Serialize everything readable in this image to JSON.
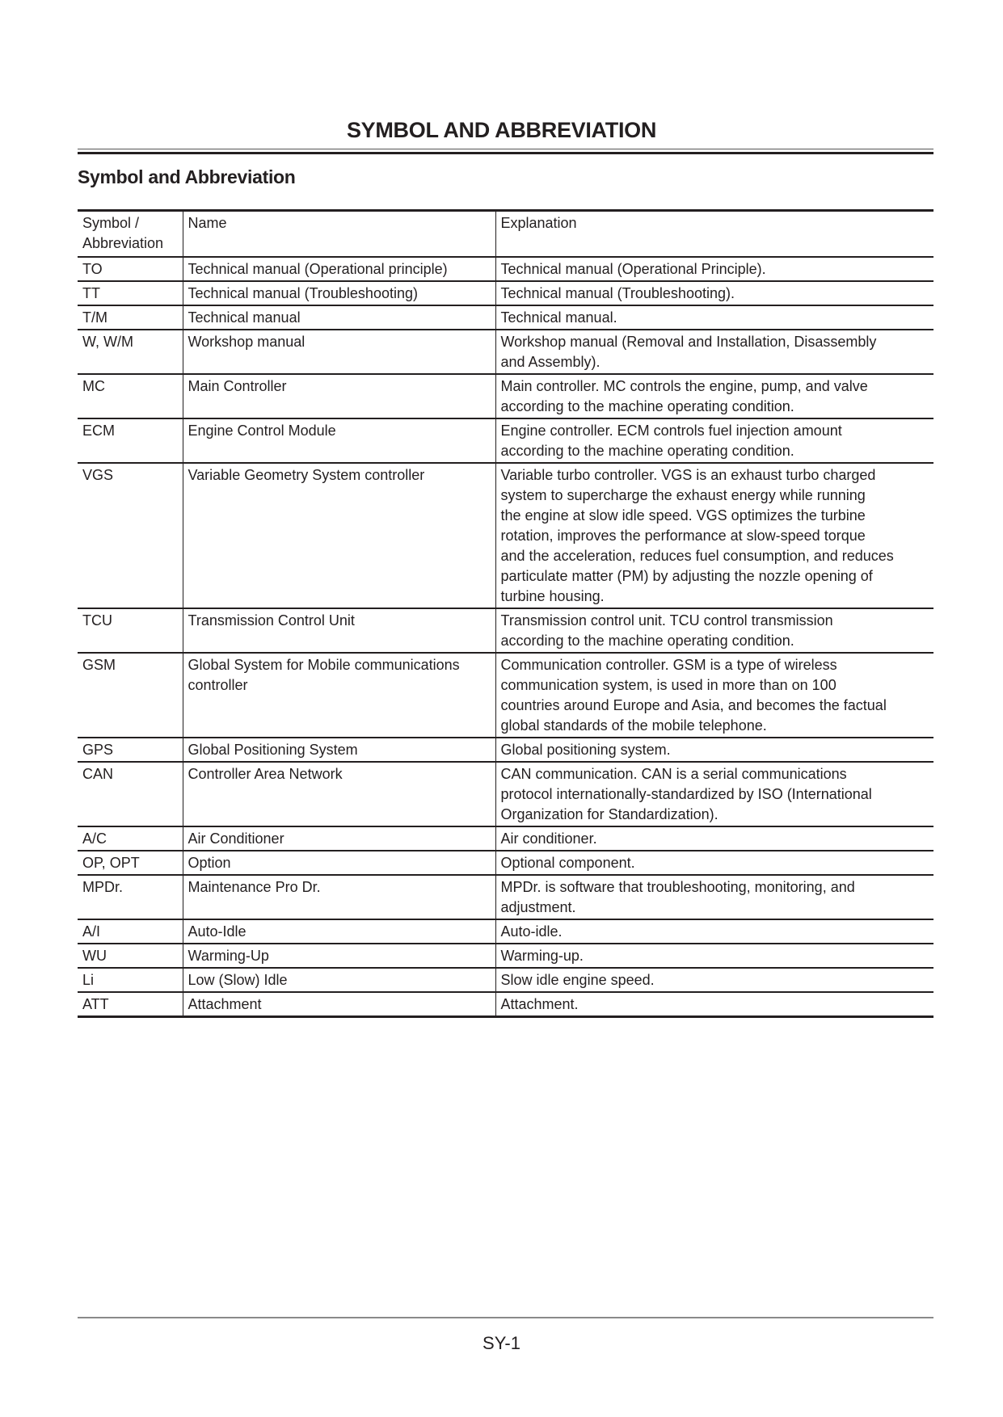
{
  "page_title": "SYMBOL AND ABBREVIATION",
  "section_title": "Symbol and Abbreviation",
  "table": {
    "headers": [
      "Symbol /\nAbbreviation",
      "Name",
      "Explanation"
    ],
    "rows": [
      [
        "TO",
        "Technical manual (Operational principle)",
        "Technical manual (Operational Principle)."
      ],
      [
        "TT",
        "Technical manual (Troubleshooting)",
        "Technical manual (Troubleshooting)."
      ],
      [
        "T/M",
        "Technical manual",
        "Technical manual."
      ],
      [
        "W, W/M",
        "Workshop manual",
        "Workshop manual (Removal and Installation, Disassembly\nand Assembly)."
      ],
      [
        "MC",
        "Main Controller",
        "Main controller. MC controls the engine, pump, and valve\naccording to the machine operating condition."
      ],
      [
        "ECM",
        "Engine Control Module",
        "Engine controller. ECM controls fuel injection amount\naccording to the machine operating condition."
      ],
      [
        "VGS",
        "Variable Geometry System controller",
        "Variable turbo controller. VGS is an exhaust turbo charged\nsystem to supercharge the exhaust energy while running\nthe engine at slow idle speed. VGS optimizes the turbine\nrotation, improves the performance at slow-speed torque\nand the acceleration, reduces fuel consumption, and reduces\nparticulate matter (PM) by adjusting the nozzle opening of\nturbine housing."
      ],
      [
        "TCU",
        "Transmission Control Unit",
        "Transmission control unit. TCU control transmission\naccording to the machine operating condition."
      ],
      [
        "GSM",
        "Global System for Mobile communications\ncontroller",
        "Communication controller. GSM is a type of wireless\ncommunication system, is used in more than on 100\ncountries around Europe and Asia, and becomes the factual\nglobal standards of the mobile telephone."
      ],
      [
        "GPS",
        "Global Positioning System",
        "Global positioning system."
      ],
      [
        "CAN",
        "Controller Area Network",
        "CAN communication. CAN is a serial communications\nprotocol internationally-standardized by ISO (International\nOrganization for Standardization)."
      ],
      [
        "A/C",
        "Air Conditioner",
        "Air conditioner."
      ],
      [
        "OP, OPT",
        "Option",
        "Optional component."
      ],
      [
        "MPDr.",
        "Maintenance Pro Dr.",
        "MPDr. is software that troubleshooting, monitoring, and\nadjustment."
      ],
      [
        "A/I",
        "Auto-Idle",
        "Auto-idle."
      ],
      [
        "WU",
        "Warming-Up",
        "Warming-up."
      ],
      [
        "Li",
        "Low (Slow) Idle",
        "Slow idle engine speed."
      ],
      [
        "ATT",
        "Attachment",
        "Attachment."
      ]
    ]
  },
  "footer": {
    "page_number": "SY-1"
  }
}
